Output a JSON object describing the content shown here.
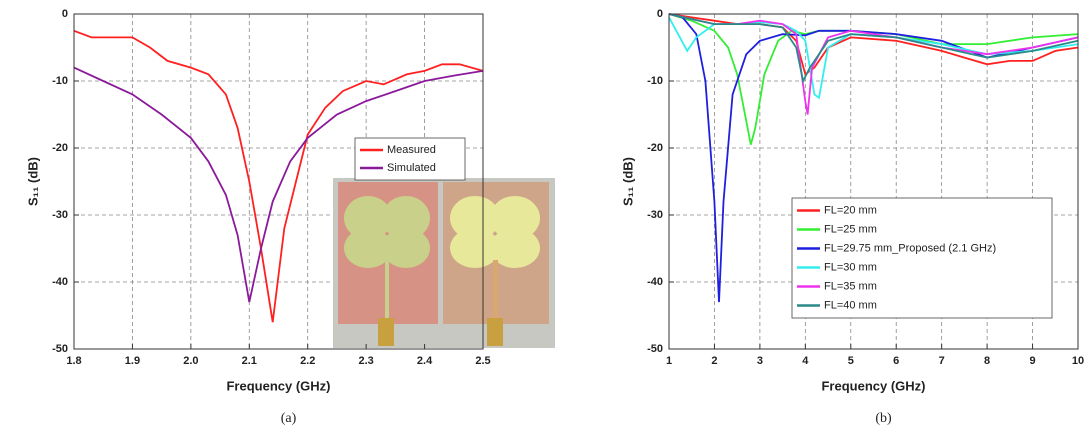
{
  "chart_data": [
    {
      "type": "line",
      "caption": "(a)",
      "xlabel": "Frequency (GHz)",
      "ylabel": "S₁₁ (dB)",
      "xlim": [
        1.8,
        2.5
      ],
      "xticks": [
        1.8,
        1.9,
        {
          "value": 2,
          "label": "2.0"
        },
        2.1,
        2.2,
        2.3,
        2.4,
        2.5
      ],
      "ylim": [
        -50,
        0
      ],
      "yticks": [
        0,
        -10,
        -20,
        -30,
        -40,
        -50
      ],
      "grid": true,
      "series": [
        {
          "name": "Measured",
          "color": "#ff2020",
          "x": [
            1.8,
            1.83,
            1.86,
            1.9,
            1.93,
            1.96,
            2.0,
            2.03,
            2.06,
            2.08,
            2.1,
            2.12,
            2.14,
            2.16,
            2.18,
            2.2,
            2.23,
            2.26,
            2.3,
            2.33,
            2.37,
            2.4,
            2.43,
            2.46,
            2.5
          ],
          "values": [
            -2.5,
            -3.5,
            -3.5,
            -3.5,
            -5,
            -7,
            -8,
            -9,
            -12,
            -17,
            -25,
            -35,
            -46,
            -32,
            -25,
            -18,
            -14,
            -11.5,
            -10,
            -10.5,
            -9,
            -8.5,
            -7.5,
            -7.5,
            -8.5
          ]
        },
        {
          "name": "Simulated",
          "color": "#8b1a9b",
          "x": [
            1.8,
            1.85,
            1.9,
            1.95,
            2.0,
            2.03,
            2.06,
            2.08,
            2.1,
            2.12,
            2.14,
            2.17,
            2.2,
            2.25,
            2.3,
            2.35,
            2.4,
            2.45,
            2.5
          ],
          "values": [
            -8,
            -10,
            -12,
            -15,
            -18.5,
            -22,
            -27,
            -33,
            -43,
            -35,
            -28,
            -22,
            -18.5,
            -15,
            -13,
            -11.5,
            -10,
            -9.2,
            -8.5
          ]
        }
      ]
    },
    {
      "type": "line",
      "caption": "(b)",
      "xlabel": "Frequency (GHz)",
      "ylabel": "S₁₁ (dB)",
      "xlim": [
        1,
        10
      ],
      "xticks": [
        1,
        2,
        3,
        4,
        5,
        6,
        7,
        8,
        9,
        10
      ],
      "ylim": [
        -50,
        0
      ],
      "yticks": [
        0,
        -10,
        -20,
        -30,
        -40,
        -50
      ],
      "grid": true,
      "series": [
        {
          "name": "FL=20 mm",
          "color": "#ff2020",
          "x": [
            1,
            1.5,
            2,
            2.5,
            3,
            3.5,
            3.8,
            4,
            4.2,
            4.5,
            5,
            6,
            7,
            7.5,
            8,
            8.5,
            9,
            9.5,
            10
          ],
          "values": [
            0,
            -0.5,
            -1,
            -1.5,
            -1.5,
            -2,
            -4,
            -9,
            -8,
            -5,
            -3.5,
            -4,
            -5.5,
            -6.5,
            -7.5,
            -7,
            -7,
            -5.5,
            -5
          ]
        },
        {
          "name": "FL=25 mm",
          "color": "#33ee33",
          "x": [
            1,
            1.5,
            2,
            2.3,
            2.5,
            2.7,
            2.8,
            2.9,
            3.1,
            3.4,
            3.7,
            4,
            4.3,
            5,
            6,
            7,
            8,
            9,
            10
          ],
          "values": [
            0,
            -1,
            -2.5,
            -5,
            -9,
            -16,
            -19.5,
            -17,
            -9,
            -4,
            -2.5,
            -3,
            -2.5,
            -2.5,
            -3,
            -4.5,
            -4.5,
            -3.5,
            -3
          ]
        },
        {
          "name": "FL=29.75 mm_Proposed (2.1 GHz)",
          "color": "#1f1fe0",
          "x": [
            1,
            1.3,
            1.6,
            1.8,
            2.0,
            2.1,
            2.2,
            2.4,
            2.7,
            3,
            3.5,
            4,
            4.3,
            5,
            6,
            7,
            8,
            9,
            10
          ],
          "values": [
            0,
            -0.5,
            -3,
            -10,
            -28,
            -43,
            -28,
            -12,
            -6,
            -4,
            -3,
            -3.2,
            -2.5,
            -2.5,
            -3,
            -4,
            -6.5,
            -5,
            -3.5
          ]
        },
        {
          "name": "FL=30 mm",
          "color": "#33eeee",
          "x": [
            1,
            1.2,
            1.4,
            1.6,
            2,
            2.5,
            3,
            3.5,
            3.8,
            4,
            4.1,
            4.2,
            4.3,
            4.5,
            5,
            6,
            7,
            8,
            9,
            10
          ],
          "values": [
            -0.5,
            -3,
            -5.5,
            -3.5,
            -1.5,
            -1.5,
            -1.2,
            -1.5,
            -2.5,
            -4,
            -8,
            -12,
            -12.5,
            -5,
            -3,
            -3.5,
            -4.5,
            -6,
            -5.5,
            -4.5
          ]
        },
        {
          "name": "FL=35 mm",
          "color": "#ee33ee",
          "x": [
            1,
            2,
            2.5,
            3,
            3.5,
            3.8,
            4,
            4.05,
            4.15,
            4.5,
            5,
            6,
            7,
            8,
            9,
            10
          ],
          "values": [
            0,
            -1.5,
            -1.5,
            -1,
            -1.5,
            -3,
            -13,
            -15,
            -8,
            -3.5,
            -2.5,
            -3.5,
            -5,
            -6,
            -5,
            -3.5
          ]
        },
        {
          "name": "FL=40 mm",
          "color": "#2a8a8a",
          "x": [
            1,
            2,
            3,
            3.5,
            3.8,
            3.95,
            4.1,
            4.5,
            5,
            6,
            7,
            8,
            9,
            10
          ],
          "values": [
            0,
            -1.5,
            -1.5,
            -2,
            -5,
            -10,
            -8,
            -4,
            -3,
            -3.5,
            -5,
            -6.5,
            -5.5,
            -4
          ]
        }
      ]
    }
  ]
}
